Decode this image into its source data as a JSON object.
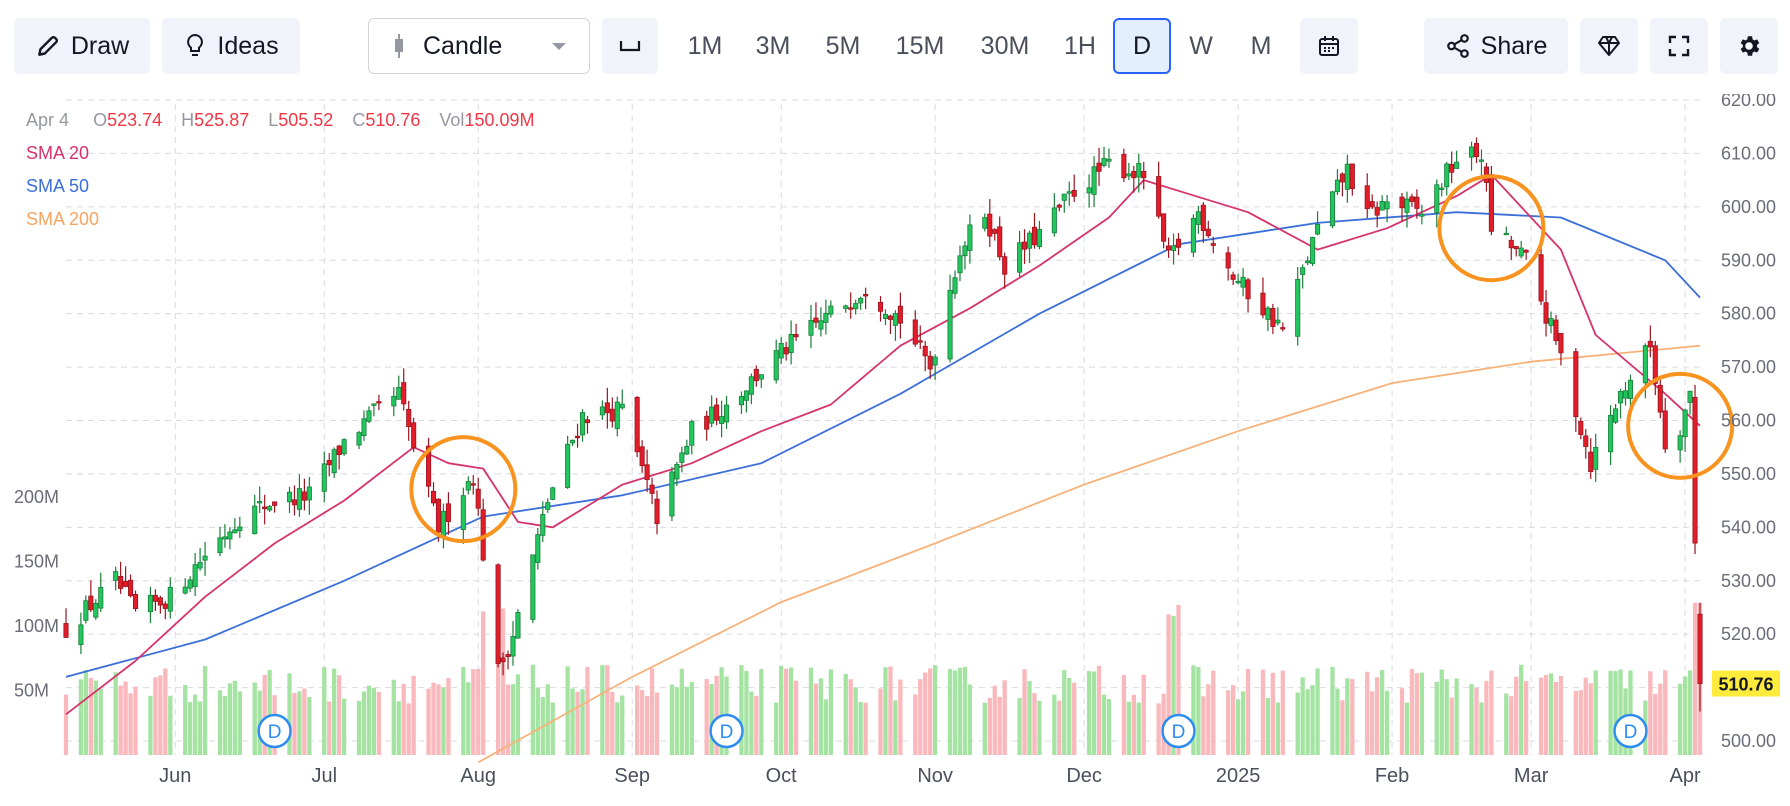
{
  "toolbar": {
    "draw_label": "Draw",
    "ideas_label": "Ideas",
    "chart_type": "Candle",
    "timeframes": [
      "1M",
      "3M",
      "5M",
      "15M",
      "30M",
      "1H",
      "D",
      "W",
      "M"
    ],
    "active_timeframe": "D",
    "share_label": "Share",
    "icons": [
      "pencil-icon",
      "lightbulb-icon",
      "candle-icon",
      "chevron-down-icon",
      "range-icon",
      "calendar-icon",
      "share-icon",
      "diamond-icon",
      "fullscreen-icon",
      "gear-icon"
    ]
  },
  "legend": {
    "date": "Apr 4",
    "o_key": "O",
    "open": "523.74",
    "h_key": "H",
    "high": "525.87",
    "l_key": "L",
    "low": "505.52",
    "c_key": "C",
    "close": "510.76",
    "vol_key": "Vol",
    "volume": "150.09M",
    "sma20": "SMA 20",
    "sma50": "SMA 50",
    "sma200": "SMA 200"
  },
  "colors": {
    "up": "#22c55e",
    "down": "#e11d2a",
    "vol_up": "#a5e3a3",
    "vol_down": "#f9b8bb",
    "sma20": "#d6336c",
    "sma50": "#3b6fd8",
    "sma200": "#f7b27a",
    "highlight": "#f7931e",
    "last_price_bg": "#ffeb3b",
    "dividend_badge": "#2d8cf0"
  },
  "chart_data": {
    "type": "candlestick",
    "symbol_series": "price",
    "y_price_range": [
      500,
      620
    ],
    "price_ticks": [
      620,
      610,
      600,
      590,
      580,
      570,
      560,
      550,
      540,
      530,
      520,
      510,
      500
    ],
    "price_tick_labels": [
      "620.00",
      "610.00",
      "600.00",
      "590.00",
      "580.00",
      "570.00",
      "560.00",
      "550.00",
      "540.00",
      "530.00",
      "520.00",
      "510.00",
      "500.00"
    ],
    "volume_ticks": [
      200,
      150,
      100,
      50
    ],
    "volume_tick_labels": [
      "200M",
      "150M",
      "100M",
      "50M"
    ],
    "x_labels": [
      "Jun",
      "Jul",
      "Aug",
      "Sep",
      "Oct",
      "Nov",
      "Dec",
      "2025",
      "Feb",
      "Mar",
      "Apr"
    ],
    "x_label_dates": [
      "2024-06-01",
      "2024-07-01",
      "2024-08-01",
      "2024-09-01",
      "2024-10-01",
      "2024-11-01",
      "2024-12-01",
      "2025-01-01",
      "2025-02-01",
      "2025-03-01",
      "2025-04-01"
    ],
    "first_date": "2024-05-10",
    "last_date": "2025-04-04",
    "last_price_label": "510.76",
    "dividend_marker_dates": [
      "2024-06-21",
      "2024-09-20",
      "2024-12-20",
      "2025-03-21"
    ],
    "dividend_marker_label": "D",
    "highlight_circle_dates": [
      "2024-07-29",
      "2025-02-21",
      "2025-03-31"
    ],
    "candle_anchors": [
      [
        "2024-05-10",
        521
      ],
      [
        "2024-05-20",
        530
      ],
      [
        "2024-05-24",
        524
      ],
      [
        "2024-05-31",
        527
      ],
      [
        "2024-06-07",
        535
      ],
      [
        "2024-06-14",
        542
      ],
      [
        "2024-06-21",
        545
      ],
      [
        "2024-06-28",
        546
      ],
      [
        "2024-07-05",
        556
      ],
      [
        "2024-07-12",
        562
      ],
      [
        "2024-07-16",
        565
      ],
      [
        "2024-07-19",
        555
      ],
      [
        "2024-07-24",
        540
      ],
      [
        "2024-07-31",
        550
      ],
      [
        "2024-08-05",
        513
      ],
      [
        "2024-08-08",
        520
      ],
      [
        "2024-08-15",
        545
      ],
      [
        "2024-08-22",
        561
      ],
      [
        "2024-08-30",
        562
      ],
      [
        "2024-09-06",
        542
      ],
      [
        "2024-09-13",
        558
      ],
      [
        "2024-09-20",
        563
      ],
      [
        "2024-09-30",
        572
      ],
      [
        "2024-10-11",
        580
      ],
      [
        "2024-10-18",
        585
      ],
      [
        "2024-10-25",
        579
      ],
      [
        "2024-10-31",
        570
      ],
      [
        "2024-11-06",
        592
      ],
      [
        "2024-11-11",
        599
      ],
      [
        "2024-11-15",
        589
      ],
      [
        "2024-11-22",
        595
      ],
      [
        "2024-11-29",
        603
      ],
      [
        "2024-12-06",
        608
      ],
      [
        "2024-12-13",
        606
      ],
      [
        "2024-12-18",
        590
      ],
      [
        "2024-12-24",
        599
      ],
      [
        "2024-12-31",
        587
      ],
      [
        "2025-01-10",
        577
      ],
      [
        "2025-01-17",
        596
      ],
      [
        "2025-01-23",
        607
      ],
      [
        "2025-01-27",
        598
      ],
      [
        "2025-01-31",
        601
      ],
      [
        "2025-02-07",
        599
      ],
      [
        "2025-02-14",
        609
      ],
      [
        "2025-02-19",
        610
      ],
      [
        "2025-02-21",
        596
      ],
      [
        "2025-02-28",
        590
      ],
      [
        "2025-03-07",
        572
      ],
      [
        "2025-03-13",
        552
      ],
      [
        "2025-03-19",
        565
      ],
      [
        "2025-03-25",
        574
      ],
      [
        "2025-03-28",
        556
      ],
      [
        "2025-03-31",
        559
      ],
      [
        "2025-04-02",
        565
      ],
      [
        "2025-04-03",
        537
      ],
      [
        "2025-04-04",
        510.76
      ]
    ],
    "sma20_points": [
      [
        "2024-05-10",
        505
      ],
      [
        "2024-05-24",
        515
      ],
      [
        "2024-06-07",
        527
      ],
      [
        "2024-06-21",
        537
      ],
      [
        "2024-07-05",
        545
      ],
      [
        "2024-07-19",
        555
      ],
      [
        "2024-07-26",
        552
      ],
      [
        "2024-08-02",
        551
      ],
      [
        "2024-08-09",
        541
      ],
      [
        "2024-08-16",
        540
      ],
      [
        "2024-08-30",
        548
      ],
      [
        "2024-09-13",
        552
      ],
      [
        "2024-09-27",
        558
      ],
      [
        "2024-10-11",
        563
      ],
      [
        "2024-10-25",
        574
      ],
      [
        "2024-11-08",
        581
      ],
      [
        "2024-11-22",
        589
      ],
      [
        "2024-12-06",
        598
      ],
      [
        "2024-12-13",
        605
      ],
      [
        "2024-12-20",
        603
      ],
      [
        "2025-01-03",
        599
      ],
      [
        "2025-01-17",
        592
      ],
      [
        "2025-01-31",
        596
      ],
      [
        "2025-02-14",
        602
      ],
      [
        "2025-02-21",
        606
      ],
      [
        "2025-03-07",
        592
      ],
      [
        "2025-03-14",
        576
      ],
      [
        "2025-03-28",
        565
      ],
      [
        "2025-04-04",
        559
      ]
    ],
    "sma50_points": [
      [
        "2024-05-10",
        512
      ],
      [
        "2024-06-07",
        519
      ],
      [
        "2024-07-05",
        530
      ],
      [
        "2024-08-02",
        542
      ],
      [
        "2024-08-30",
        546
      ],
      [
        "2024-09-27",
        552
      ],
      [
        "2024-10-25",
        565
      ],
      [
        "2024-11-22",
        580
      ],
      [
        "2024-12-20",
        593
      ],
      [
        "2025-01-17",
        597
      ],
      [
        "2025-02-14",
        599
      ],
      [
        "2025-03-07",
        598
      ],
      [
        "2025-03-28",
        590
      ],
      [
        "2025-04-04",
        583
      ]
    ],
    "sma200_points": [
      [
        "2024-08-01",
        496
      ],
      [
        "2024-09-01",
        512
      ],
      [
        "2024-10-01",
        526
      ],
      [
        "2024-11-01",
        537
      ],
      [
        "2024-12-01",
        548
      ],
      [
        "2025-01-01",
        558
      ],
      [
        "2025-02-01",
        567
      ],
      [
        "2025-03-01",
        571
      ],
      [
        "2025-04-04",
        574
      ]
    ]
  }
}
